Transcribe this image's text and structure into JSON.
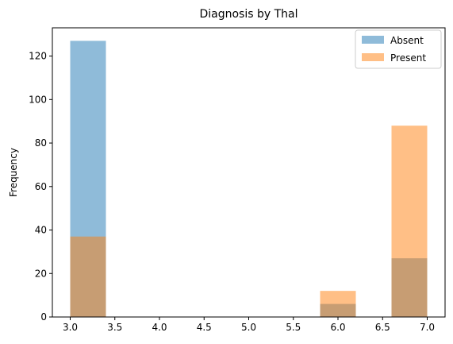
{
  "chart_data": {
    "type": "bar",
    "title": "Diagnosis by Thal",
    "xlabel": "",
    "ylabel": "Frequency",
    "xlim": [
      2.8,
      7.2
    ],
    "ylim": [
      0,
      133
    ],
    "x_ticks": [
      "3.0",
      "3.5",
      "4.0",
      "4.5",
      "5.0",
      "5.5",
      "6.0",
      "6.5",
      "7.0"
    ],
    "y_ticks": [
      "0",
      "20",
      "40",
      "60",
      "80",
      "100",
      "120"
    ],
    "bin_edges": [
      3.0,
      3.4,
      3.8,
      4.2,
      4.6,
      5.0,
      5.4,
      5.8,
      6.2,
      6.6,
      7.0
    ],
    "series": [
      {
        "name": "Absent",
        "color": "#1f77b4",
        "alpha": 0.5,
        "values": [
          127,
          0,
          0,
          0,
          0,
          0,
          0,
          6,
          0,
          27
        ]
      },
      {
        "name": "Present",
        "color": "#ff7f0e",
        "alpha": 0.5,
        "values": [
          37,
          0,
          0,
          0,
          0,
          0,
          0,
          12,
          0,
          88
        ]
      }
    ],
    "grid": false,
    "legend_position": "top-right"
  }
}
